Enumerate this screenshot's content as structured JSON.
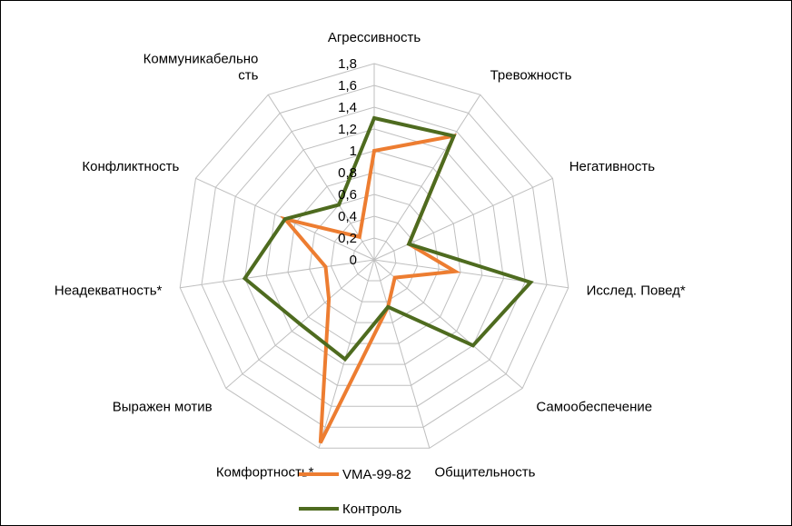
{
  "chart_data": {
    "type": "radar",
    "categories": [
      "Агрессивность",
      "Тревожность",
      "Негативность",
      "Исслед. Повед*",
      "Самообеспечение",
      "Общительность",
      "Комфортность*",
      "Выражен мотив",
      "Неадекватность*",
      "Конфликтность",
      "Коммуникабельно сть"
    ],
    "category_lines": [
      [
        "Агрессивность"
      ],
      [
        "Тревожность"
      ],
      [
        "Негативность"
      ],
      [
        "Исслед. Повед*"
      ],
      [
        "Самообеспечение"
      ],
      [
        "Общительность"
      ],
      [
        "Комфортность*"
      ],
      [
        "Выражен мотив"
      ],
      [
        "Неадекватность*"
      ],
      [
        "Конфликтность"
      ],
      [
        "Коммуникабельно",
        "сть"
      ]
    ],
    "rmax": 1.8,
    "ticks": [
      "0",
      "0,2",
      "0,4",
      "0,6",
      "0,8",
      "1",
      "1,2",
      "1,4",
      "1,6",
      "1,8"
    ],
    "grid": true,
    "legend_position": "bottom",
    "series": [
      {
        "name": "VMA-99-82",
        "color": "#ED7D31",
        "values": [
          1.0,
          1.35,
          0.35,
          0.75,
          0.25,
          0.45,
          1.75,
          0.55,
          0.45,
          0.9,
          0.25
        ]
      },
      {
        "name": "Контроль",
        "color": "#4E6B1F",
        "values": [
          1.3,
          1.35,
          0.35,
          1.45,
          1.2,
          0.45,
          0.95,
          0.9,
          1.2,
          0.9,
          0.6
        ]
      }
    ]
  }
}
